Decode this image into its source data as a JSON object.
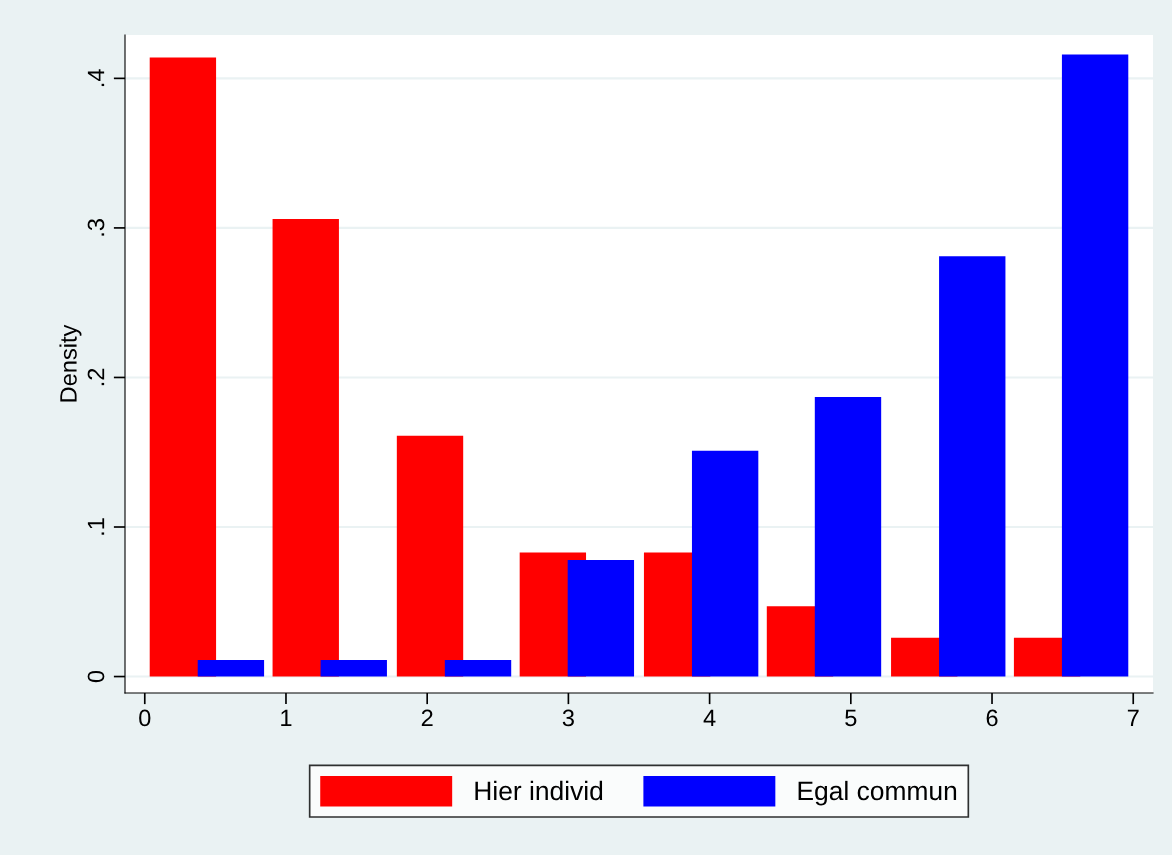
{
  "chart_data": {
    "type": "bar",
    "ylabel": "Density",
    "series": [
      {
        "name": "Hier individ",
        "color": "#ff0000",
        "x": [
          0.27,
          1.14,
          2.02,
          2.89,
          3.77,
          4.64,
          5.52,
          6.39
        ],
        "values": [
          0.414,
          0.306,
          0.161,
          0.083,
          0.083,
          0.047,
          0.026,
          0.026
        ]
      },
      {
        "name": "Egal commun",
        "color": "#0000ff",
        "x": [
          0.61,
          1.48,
          2.36,
          3.23,
          4.11,
          4.98,
          5.86,
          6.73
        ],
        "values": [
          0.011,
          0.011,
          0.011,
          0.078,
          0.151,
          0.187,
          0.281,
          0.416
        ]
      }
    ],
    "xlim": [
      -0.14,
      7.14
    ],
    "xticks": [
      0,
      1,
      2,
      3,
      4,
      5,
      6,
      7
    ],
    "ylim": [
      -0.011,
      0.429
    ],
    "yticks": [
      0,
      {
        "value": 0.1,
        "label": ".1"
      },
      {
        "value": 0.2,
        "label": ".2"
      },
      {
        "value": 0.3,
        "label": ".3"
      },
      {
        "value": 0.4,
        "label": ".4"
      }
    ],
    "grid": "y",
    "legend": "bottom"
  }
}
